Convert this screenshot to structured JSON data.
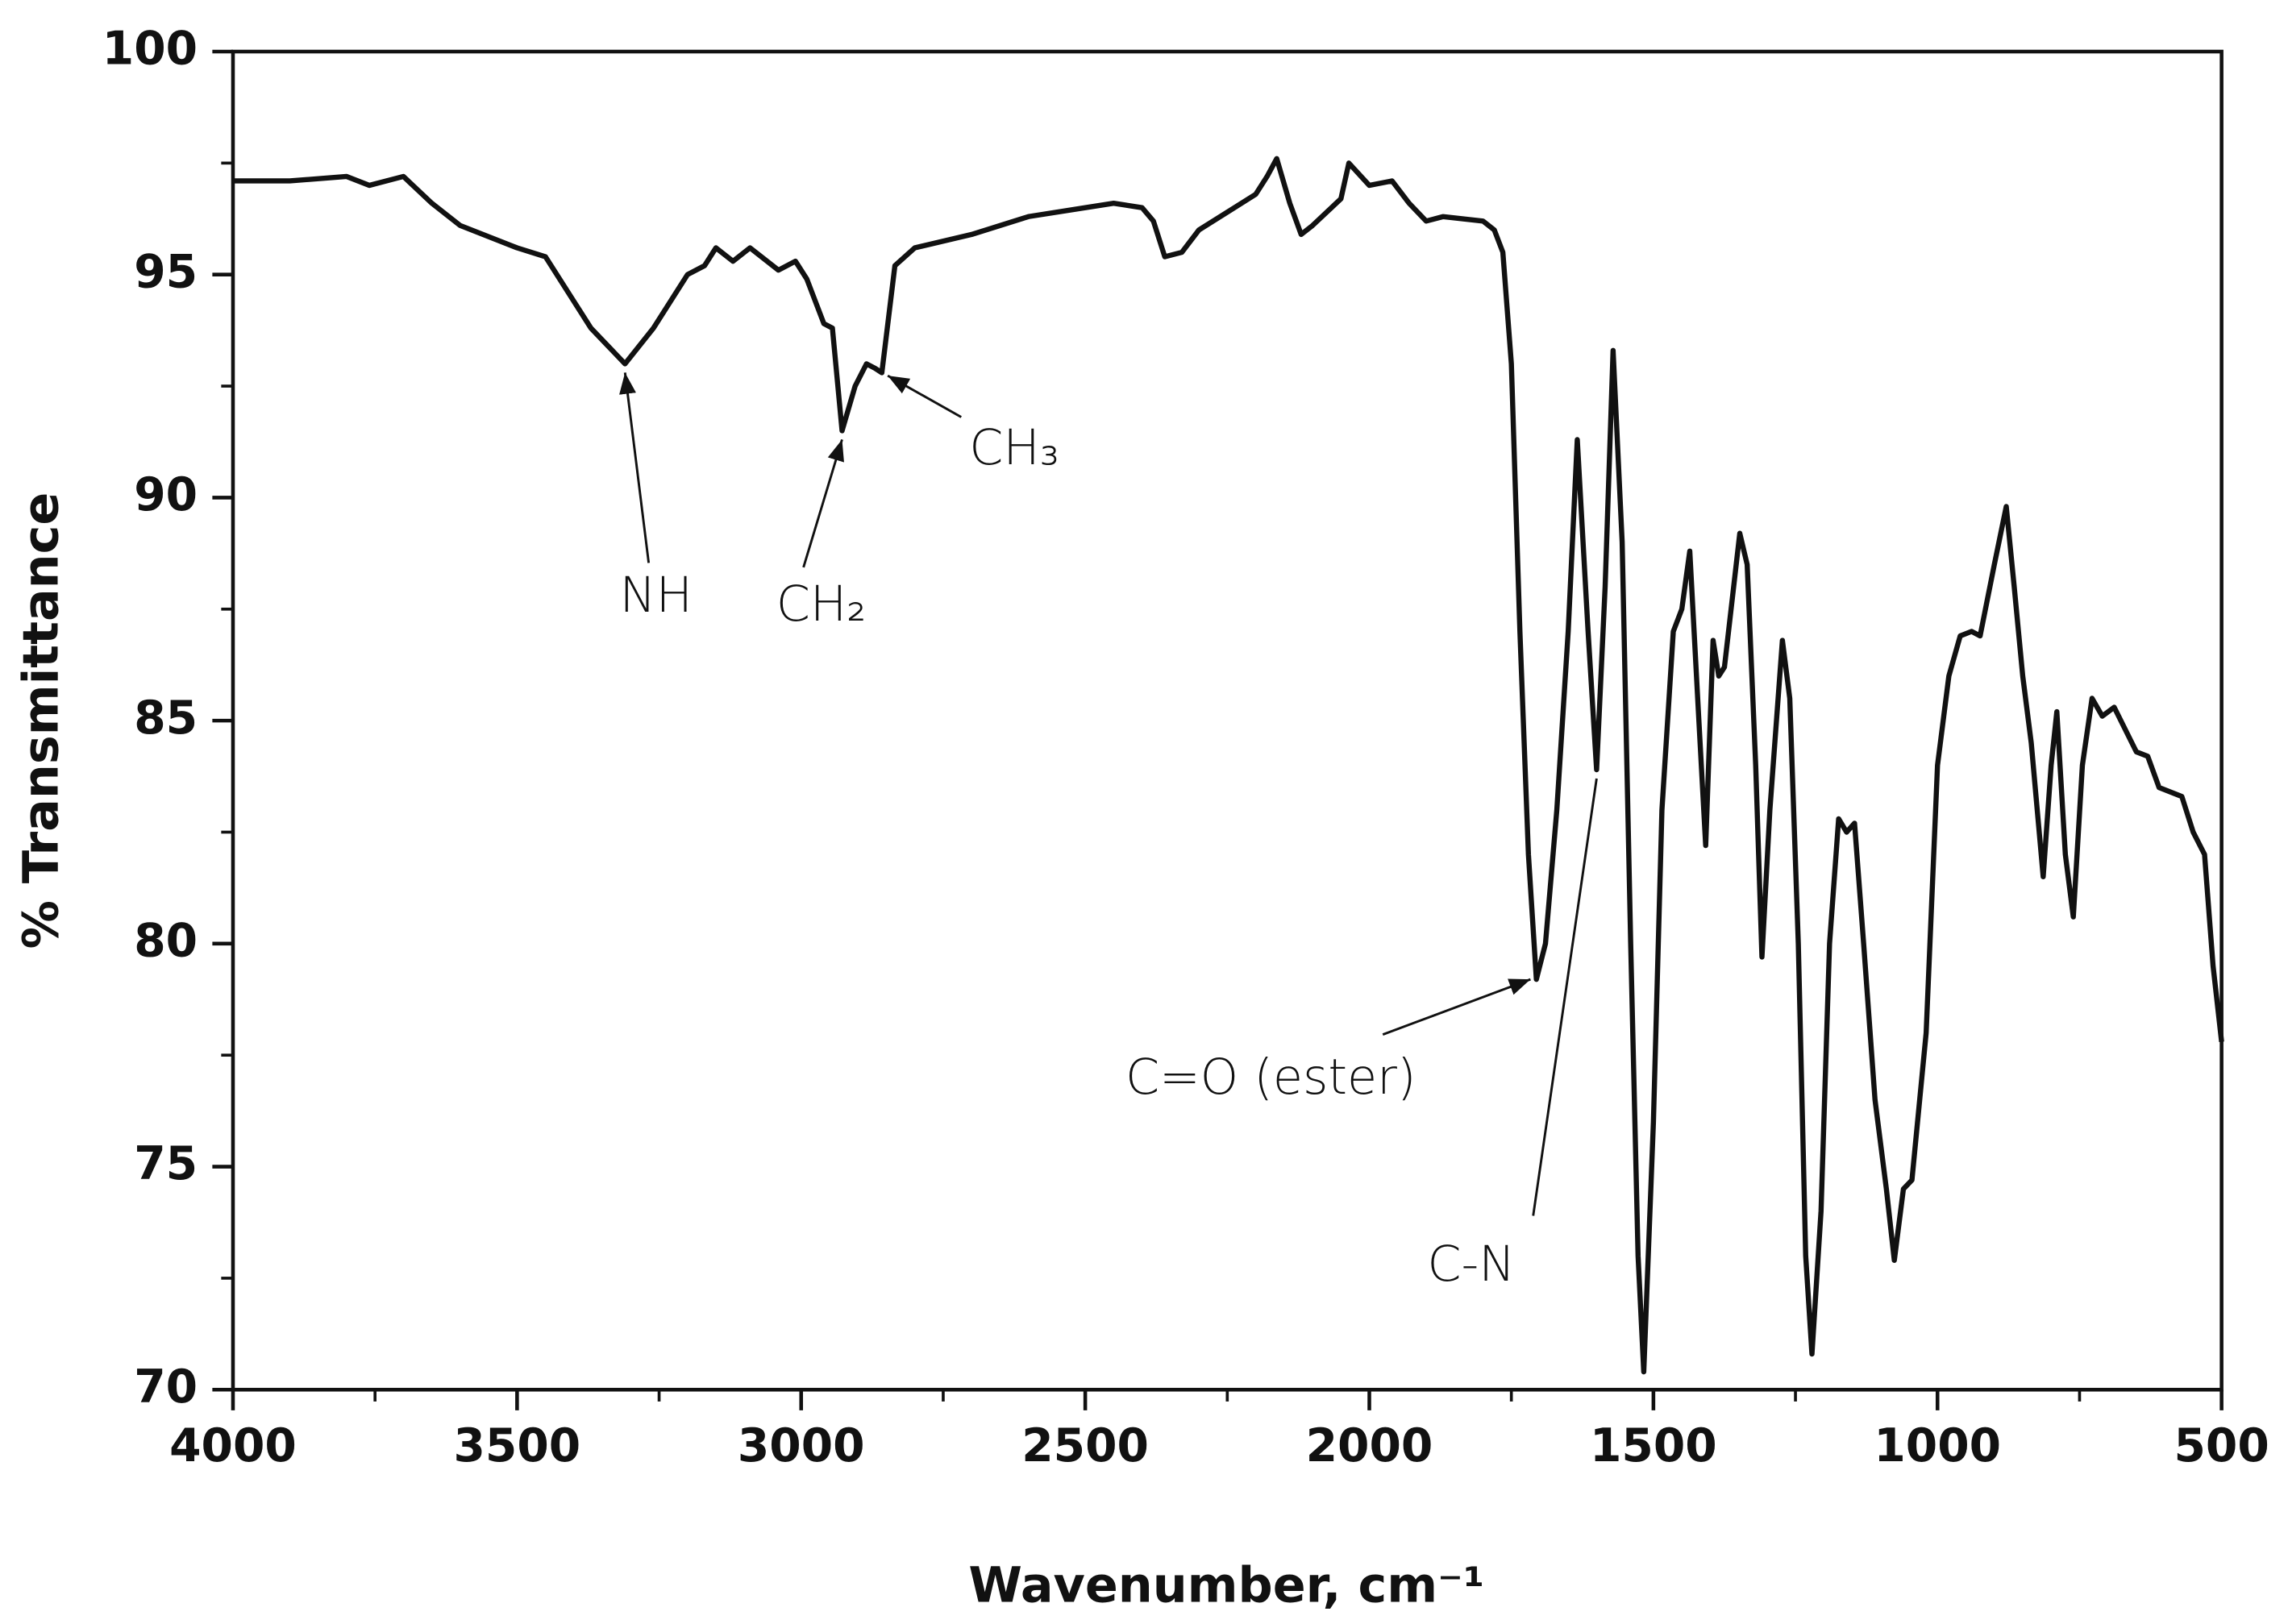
{
  "chart_data": {
    "type": "line",
    "xlabel": "Wavenumber, cm⁻¹",
    "ylabel": "% Transmittance",
    "xlim": [
      4000,
      500
    ],
    "ylim": [
      70,
      100
    ],
    "xticks": [
      4000,
      3500,
      3000,
      2500,
      2000,
      1500,
      1000,
      500
    ],
    "yticks": [
      70,
      75,
      80,
      85,
      90,
      95,
      100
    ],
    "color": "#111111",
    "x": [
      4000,
      3900,
      3800,
      3760,
      3700,
      3650,
      3600,
      3500,
      3450,
      3400,
      3370,
      3340,
      3310,
      3260,
      3200,
      3170,
      3150,
      3120,
      3090,
      3040,
      3010,
      2990,
      2960,
      2945,
      2928,
      2905,
      2885,
      2870,
      2858,
      2835,
      2800,
      2700,
      2600,
      2500,
      2450,
      2400,
      2380,
      2360,
      2330,
      2300,
      2200,
      2180,
      2163,
      2140,
      2120,
      2100,
      2050,
      2036,
      2000,
      1960,
      1930,
      1900,
      1870,
      1800,
      1780,
      1765,
      1750,
      1735,
      1720,
      1706,
      1690,
      1670,
      1650,
      1634,
      1615,
      1600,
      1585,
      1571,
      1555,
      1540,
      1527,
      1517,
      1500,
      1485,
      1465,
      1450,
      1436,
      1420,
      1408,
      1395,
      1385,
      1375,
      1348,
      1335,
      1320,
      1309,
      1295,
      1273,
      1260,
      1245,
      1232,
      1221,
      1205,
      1190,
      1174,
      1160,
      1146,
      1130,
      1110,
      1090,
      1076,
      1060,
      1045,
      1020,
      1000,
      980,
      960,
      940,
      925,
      900,
      879,
      865,
      850,
      835,
      814,
      800,
      790,
      775,
      761,
      745,
      728,
      710,
      689,
      650,
      630,
      610,
      570,
      550,
      530,
      515,
      500
    ],
    "values": [
      97.1,
      97.1,
      97.2,
      97.0,
      97.2,
      96.6,
      96.1,
      95.6,
      95.4,
      94.4,
      93.8,
      93.4,
      93.0,
      93.8,
      95.0,
      95.2,
      95.6,
      95.3,
      95.6,
      95.1,
      95.3,
      94.9,
      93.9,
      93.8,
      91.5,
      92.5,
      93.0,
      92.9,
      92.8,
      95.2,
      95.6,
      95.9,
      96.3,
      96.5,
      96.6,
      96.5,
      96.2,
      95.4,
      95.5,
      96.0,
      96.8,
      97.2,
      97.6,
      96.6,
      95.9,
      96.1,
      96.7,
      97.5,
      97.0,
      97.1,
      96.6,
      96.2,
      96.3,
      96.2,
      96.0,
      95.5,
      93.0,
      87.0,
      82.0,
      79.2,
      80.0,
      83.0,
      87.0,
      91.3,
      87.0,
      83.9,
      88.0,
      93.3,
      89.0,
      80.0,
      73.0,
      70.4,
      76.0,
      83.0,
      87.0,
      87.5,
      88.8,
      85.0,
      82.2,
      86.8,
      86.0,
      86.2,
      89.2,
      88.5,
      84.0,
      79.7,
      83.0,
      86.8,
      85.5,
      80.0,
      73.0,
      70.8,
      74.0,
      80.0,
      82.8,
      82.5,
      82.7,
      80.0,
      76.5,
      74.5,
      72.9,
      74.5,
      74.7,
      78.0,
      84.0,
      86.0,
      86.9,
      87.0,
      86.9,
      88.5,
      89.8,
      88.0,
      86.0,
      84.5,
      81.5,
      84.0,
      85.2,
      82.0,
      80.6,
      84.0,
      85.5,
      85.1,
      85.3,
      84.3,
      84.2,
      83.5,
      83.3,
      82.5,
      82.0,
      79.5,
      77.8
    ],
    "annotations": [
      {
        "text": "NH",
        "x": 3310,
        "y": 93.0
      },
      {
        "text": "CH₂",
        "x": 2928,
        "y": 91.5
      },
      {
        "text": "CH₃",
        "x": 2858,
        "y": 92.8
      },
      {
        "text": "C=O (ester)",
        "x": 1706,
        "y": 79.2
      },
      {
        "text": "C-N",
        "x": 1600,
        "y": 83.9
      }
    ]
  }
}
